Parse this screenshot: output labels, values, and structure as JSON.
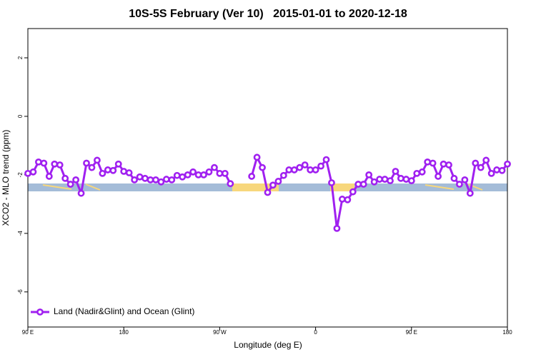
{
  "chart_data": {
    "type": "line",
    "title": "10S-5S February (Ver 10)   2015-01-01 to 2020-12-18",
    "xlabel": "Longitude (deg E)",
    "ylabel": "XCO2 - MLO trend (ppm)",
    "x": [
      90,
      95,
      100,
      105,
      110,
      115,
      120,
      125,
      130,
      135,
      140,
      145,
      150,
      155,
      160,
      165,
      170,
      175,
      180,
      185,
      190,
      195,
      200,
      205,
      210,
      215,
      220,
      225,
      230,
      235,
      240,
      245,
      250,
      255,
      260,
      265,
      270,
      275,
      280,
      285,
      290,
      295,
      300,
      305,
      310,
      315,
      320,
      325,
      330,
      335,
      340,
      345,
      350,
      355,
      360,
      365,
      370,
      375,
      380,
      385,
      390,
      395,
      400,
      405,
      410,
      415,
      420,
      425,
      430,
      435,
      440,
      445,
      450,
      455,
      460,
      465,
      470,
      475,
      480,
      485,
      490,
      495,
      500,
      505,
      510,
      515,
      520,
      525,
      530,
      535,
      540
    ],
    "series": [
      {
        "name": "Land (Nadir&Glint) and Ocean (Glint)",
        "color": "#a020f0",
        "values": [
          -1.95,
          -1.9,
          -1.56,
          -1.6,
          -2.05,
          -1.63,
          -1.66,
          -2.12,
          -2.32,
          -2.17,
          -2.63,
          -1.6,
          -1.75,
          -1.5,
          -1.95,
          -1.83,
          -1.85,
          -1.63,
          -1.88,
          -1.93,
          -2.17,
          -2.07,
          -2.12,
          -2.17,
          -2.17,
          -2.24,
          -2.15,
          -2.17,
          -2.02,
          -2.07,
          -2.0,
          -1.9,
          -2.0,
          -2.0,
          -1.9,
          -1.75,
          -1.95,
          -1.95,
          -2.3,
          null,
          null,
          null,
          -2.05,
          -1.4,
          -1.75,
          -2.6,
          -2.35,
          -2.22,
          -2.02,
          -1.83,
          -1.83,
          -1.75,
          -1.66,
          -1.83,
          -1.83,
          -1.7,
          -1.48,
          -2.27,
          -3.83,
          -2.83,
          -2.85,
          -2.58,
          -2.32,
          -2.32,
          -2.0,
          -2.24,
          -2.15,
          -2.15,
          -2.2,
          -1.88,
          -2.12,
          -2.15,
          -2.2,
          -1.95,
          -1.9,
          -1.56,
          -1.6,
          -2.05,
          -1.63,
          -1.66,
          -2.12,
          -2.32,
          -2.17,
          -2.63,
          -1.6,
          -1.75,
          -1.5,
          -1.95,
          -1.83,
          -1.85,
          -1.63
        ]
      }
    ],
    "xlim": [
      90,
      540
    ],
    "xticks": [
      {
        "value": 90,
        "label": "90 E"
      },
      180,
      {
        "value": 270,
        "label": "90 W"
      },
      {
        "value": 360,
        "label": "0"
      },
      {
        "value": 450,
        "label": "90 E"
      },
      {
        "value": 540,
        "label": "180"
      }
    ],
    "ylim": [
      -7.2,
      3
    ],
    "yticks": [
      -6,
      -4,
      -2,
      0,
      2
    ],
    "legend": "bottom-left"
  }
}
